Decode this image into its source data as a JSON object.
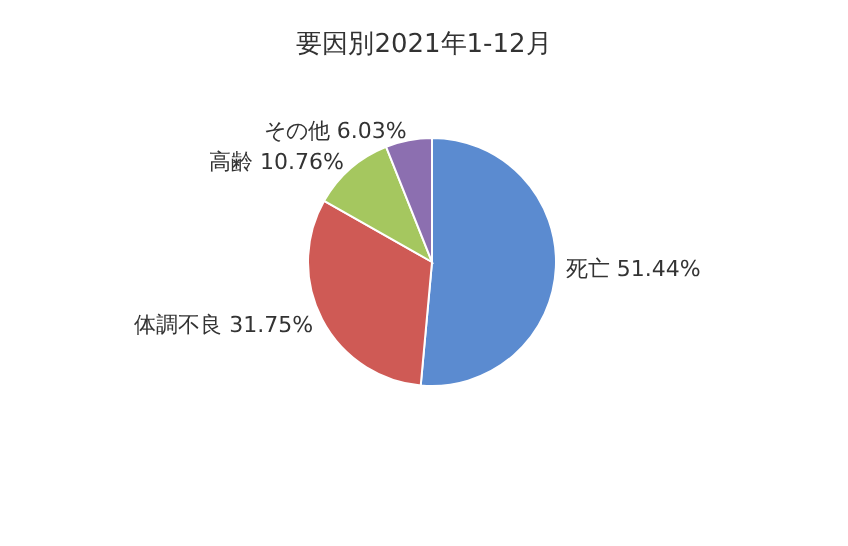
{
  "chart_data": {
    "type": "pie",
    "title": "要因別2021年1-12月",
    "categories": [
      "死亡",
      "体調不良",
      "高齢",
      "その他"
    ],
    "values": [
      51.44,
      31.75,
      10.76,
      6.03
    ],
    "value_labels": [
      "51.44%",
      "31.75%",
      "10.76%",
      "6.03%"
    ],
    "colors": [
      "#5b8bd0",
      "#cf5a55",
      "#a5c75f",
      "#8c6fb0"
    ]
  }
}
